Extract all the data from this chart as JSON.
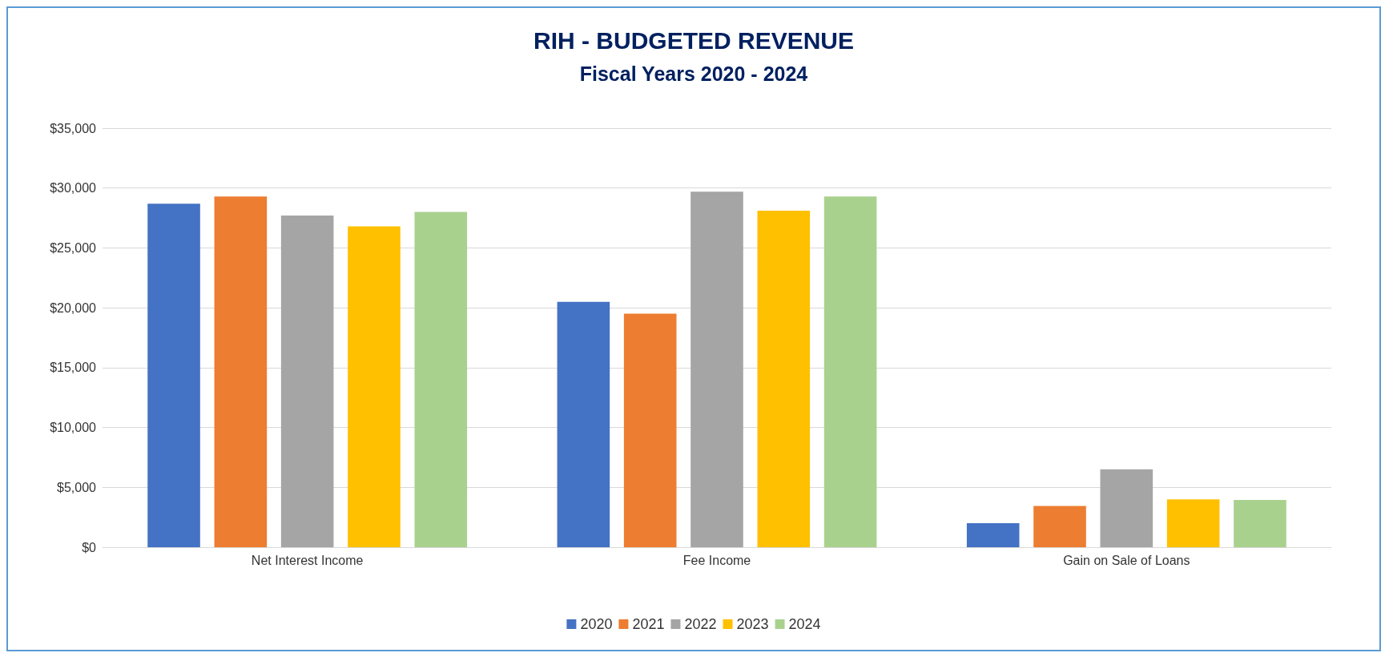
{
  "chart_data": {
    "type": "bar",
    "title": "RIH - BUDGETED REVENUE",
    "subtitle": "Fiscal Years 2020 - 2024",
    "categories": [
      "Net Interest Income",
      "Fee Income",
      "Gain on Sale of Loans"
    ],
    "series": [
      {
        "name": "2020",
        "color": "#4472c4",
        "values": [
          28700,
          20500,
          2000
        ]
      },
      {
        "name": "2021",
        "color": "#ed7d31",
        "values": [
          29300,
          19500,
          3450
        ]
      },
      {
        "name": "2022",
        "color": "#a5a5a5",
        "values": [
          27700,
          29700,
          6500
        ]
      },
      {
        "name": "2023",
        "color": "#ffc000",
        "values": [
          26800,
          28100,
          4000
        ]
      },
      {
        "name": "2024",
        "color": "#a9d18e",
        "values": [
          28000,
          29300,
          3950
        ]
      }
    ],
    "ylim": [
      0,
      35000
    ],
    "yticks": [
      {
        "value": 0,
        "label": "$0"
      },
      {
        "value": 5000,
        "label": "$5,000"
      },
      {
        "value": 10000,
        "label": "$10,000"
      },
      {
        "value": 15000,
        "label": "$15,000"
      },
      {
        "value": 20000,
        "label": "$20,000"
      },
      {
        "value": 25000,
        "label": "$25,000"
      },
      {
        "value": 30000,
        "label": "$30,000"
      },
      {
        "value": 35000,
        "label": "$35,000"
      }
    ],
    "grid": "y",
    "legend": "bottom"
  }
}
